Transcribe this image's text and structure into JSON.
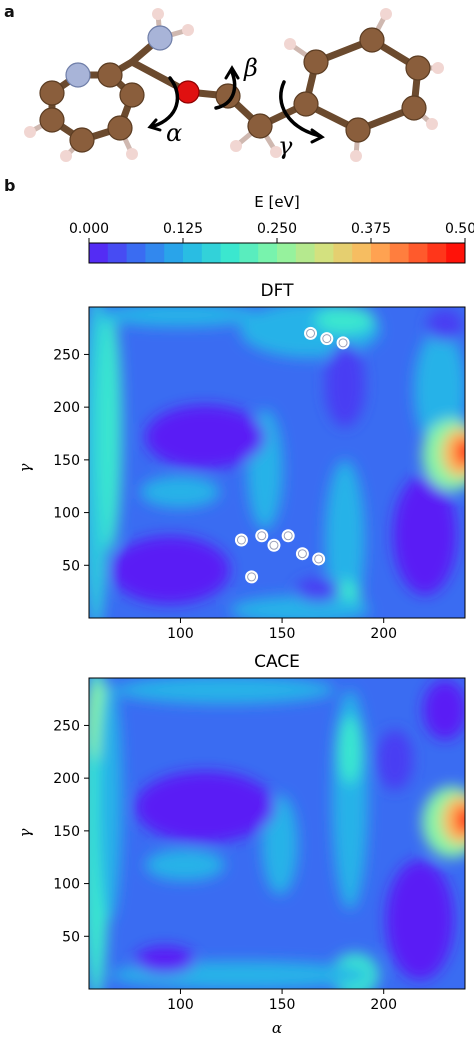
{
  "panels": {
    "a": "a",
    "b": "b"
  },
  "molecule": {
    "angle_labels": [
      "α",
      "β",
      "γ"
    ],
    "atom_colors": {
      "carbon": "#8a5e3c",
      "nitrogen": "#a8b4d8",
      "oxygen": "#e01010",
      "hydrogen": "#f1d6d2"
    }
  },
  "colorbar": {
    "title": "E [eV]",
    "ticks": [
      0.0,
      0.125,
      0.25,
      0.375,
      0.5
    ],
    "tick_labels": [
      "0.000",
      "0.125",
      "0.250",
      "0.375",
      "0.500"
    ],
    "range": [
      0,
      0.5
    ],
    "colormap": "rainbow-like",
    "colors": [
      "#5a1cf5",
      "#3a6cf2",
      "#25b2e8",
      "#3be7cf",
      "#87f6a5",
      "#d3e17f",
      "#ffb45a",
      "#ff5a2c",
      "#ff0000"
    ]
  },
  "chart_data": [
    {
      "type": "heatmap",
      "title": "DFT",
      "xlabel": "",
      "ylabel": "γ",
      "xlim": [
        55,
        240
      ],
      "ylim": [
        0,
        295
      ],
      "xticks": [
        100,
        150,
        200
      ],
      "yticks": [
        50,
        100,
        150,
        200,
        250
      ],
      "scatter_points": [
        {
          "x": 164,
          "y": 270
        },
        {
          "x": 172,
          "y": 265
        },
        {
          "x": 180,
          "y": 261
        },
        {
          "x": 130,
          "y": 74
        },
        {
          "x": 140,
          "y": 78
        },
        {
          "x": 146,
          "y": 69
        },
        {
          "x": 153,
          "y": 78
        },
        {
          "x": 160,
          "y": 61
        },
        {
          "x": 168,
          "y": 56
        },
        {
          "x": 135,
          "y": 39
        }
      ]
    },
    {
      "type": "heatmap",
      "title": "CACE",
      "xlabel": "α",
      "ylabel": "γ",
      "xlim": [
        55,
        240
      ],
      "ylim": [
        0,
        295
      ],
      "xticks": [
        100,
        150,
        200
      ],
      "yticks": [
        50,
        100,
        150,
        200,
        250
      ]
    }
  ]
}
